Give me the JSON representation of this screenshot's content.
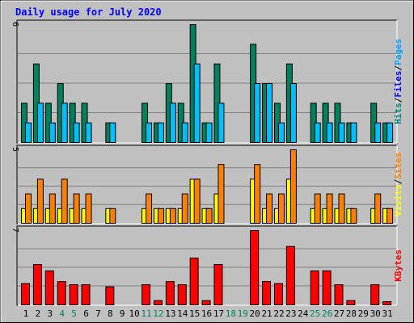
{
  "chart_data": {
    "type": "bar",
    "title": "Daily usage for July 2020",
    "days": [
      {
        "label": "1",
        "weekend": false
      },
      {
        "label": "2",
        "weekend": false
      },
      {
        "label": "3",
        "weekend": false
      },
      {
        "label": "4",
        "weekend": true
      },
      {
        "label": "5",
        "weekend": true
      },
      {
        "label": "6",
        "weekend": false
      },
      {
        "label": "7",
        "weekend": false
      },
      {
        "label": "8",
        "weekend": false
      },
      {
        "label": "9",
        "weekend": false
      },
      {
        "label": "10",
        "weekend": false
      },
      {
        "label": "11",
        "weekend": true
      },
      {
        "label": "12",
        "weekend": true
      },
      {
        "label": "13",
        "weekend": false
      },
      {
        "label": "14",
        "weekend": false
      },
      {
        "label": "15",
        "weekend": false
      },
      {
        "label": "16",
        "weekend": false
      },
      {
        "label": "17",
        "weekend": false
      },
      {
        "label": "18",
        "weekend": true
      },
      {
        "label": "19",
        "weekend": true
      },
      {
        "label": "20",
        "weekend": false
      },
      {
        "label": "21",
        "weekend": false
      },
      {
        "label": "22",
        "weekend": false
      },
      {
        "label": "23",
        "weekend": false
      },
      {
        "label": "24",
        "weekend": false
      },
      {
        "label": "25",
        "weekend": true
      },
      {
        "label": "26",
        "weekend": true
      },
      {
        "label": "27",
        "weekend": false
      },
      {
        "label": "28",
        "weekend": false
      },
      {
        "label": "29",
        "weekend": false
      },
      {
        "label": "30",
        "weekend": false
      },
      {
        "label": "31",
        "weekend": false
      }
    ],
    "panels": [
      {
        "id": "hits-files-pages",
        "ymax_label": "6",
        "ymax": 6,
        "side_label": [
          {
            "text": "Pages",
            "color": "#00a0ff"
          },
          {
            "text": "/",
            "color": "#000000"
          },
          {
            "text": "Files",
            "color": "#0000ff"
          },
          {
            "text": "/",
            "color": "#000000"
          },
          {
            "text": "Hits",
            "color": "#008080"
          }
        ],
        "series": [
          {
            "key": "hits",
            "color": "#00805c",
            "values": [
              2,
              4,
              2,
              3,
              2,
              2,
              0,
              1,
              0,
              0,
              2,
              1,
              3,
              2,
              6,
              1,
              4,
              0,
              0,
              5,
              3,
              2,
              4,
              0,
              2,
              2,
              2,
              1,
              0,
              2,
              1
            ]
          },
          {
            "key": "files",
            "color": "#00bfff",
            "values": [
              1,
              2,
              1,
              2,
              1,
              1,
              0,
              1,
              0,
              0,
              1,
              1,
              2,
              1,
              4,
              1,
              2,
              0,
              0,
              3,
              3,
              1,
              3,
              0,
              1,
              1,
              1,
              1,
              0,
              1,
              1
            ]
          },
          {
            "key": "pages",
            "color": "#00bfff",
            "values": [
              0,
              0,
              0,
              0,
              0,
              0,
              0,
              0,
              0,
              0,
              0,
              0,
              0,
              0,
              0,
              0,
              0,
              0,
              0,
              0,
              0,
              0,
              0,
              0,
              0,
              0,
              0,
              0,
              0,
              0,
              0
            ]
          }
        ]
      },
      {
        "id": "visits-sites",
        "ymax_label": "5",
        "ymax": 5,
        "side_label": [
          {
            "text": "Sites",
            "color": "#ff8000"
          },
          {
            "text": "/",
            "color": "#000000"
          },
          {
            "text": "Visits",
            "color": "#ffff00"
          }
        ],
        "series": [
          {
            "key": "visits",
            "color": "#ffff00",
            "values": [
              1,
              1,
              1,
              1,
              1,
              1,
              0,
              1,
              0,
              0,
              1,
              1,
              1,
              1,
              3,
              1,
              2,
              0,
              0,
              3,
              1,
              1,
              3,
              0,
              1,
              1,
              1,
              1,
              0,
              1,
              1
            ]
          },
          {
            "key": "sites",
            "color": "#ff8000",
            "values": [
              2,
              3,
              2,
              3,
              2,
              2,
              0,
              1,
              0,
              0,
              2,
              1,
              1,
              2,
              3,
              1,
              4,
              0,
              0,
              4,
              2,
              2,
              5,
              0,
              2,
              2,
              2,
              1,
              0,
              2,
              1
            ]
          }
        ]
      },
      {
        "id": "kbytes",
        "ymax_label": "7",
        "ymax": 7,
        "side_label": [
          {
            "text": "KBytes",
            "color": "#ff0000"
          }
        ],
        "series": [
          {
            "key": "kbytes",
            "color": "#ff0000",
            "values": [
              2.0,
              3.8,
              3.2,
              2.2,
              1.9,
              1.9,
              0,
              1.7,
              0,
              0,
              1.9,
              0.4,
              2.2,
              1.9,
              4.4,
              0.4,
              3.8,
              0,
              0,
              7.0,
              2.2,
              2.0,
              5.5,
              0,
              3.2,
              3.2,
              1.9,
              0.4,
              0,
              1.9,
              0.3
            ]
          }
        ]
      }
    ]
  }
}
